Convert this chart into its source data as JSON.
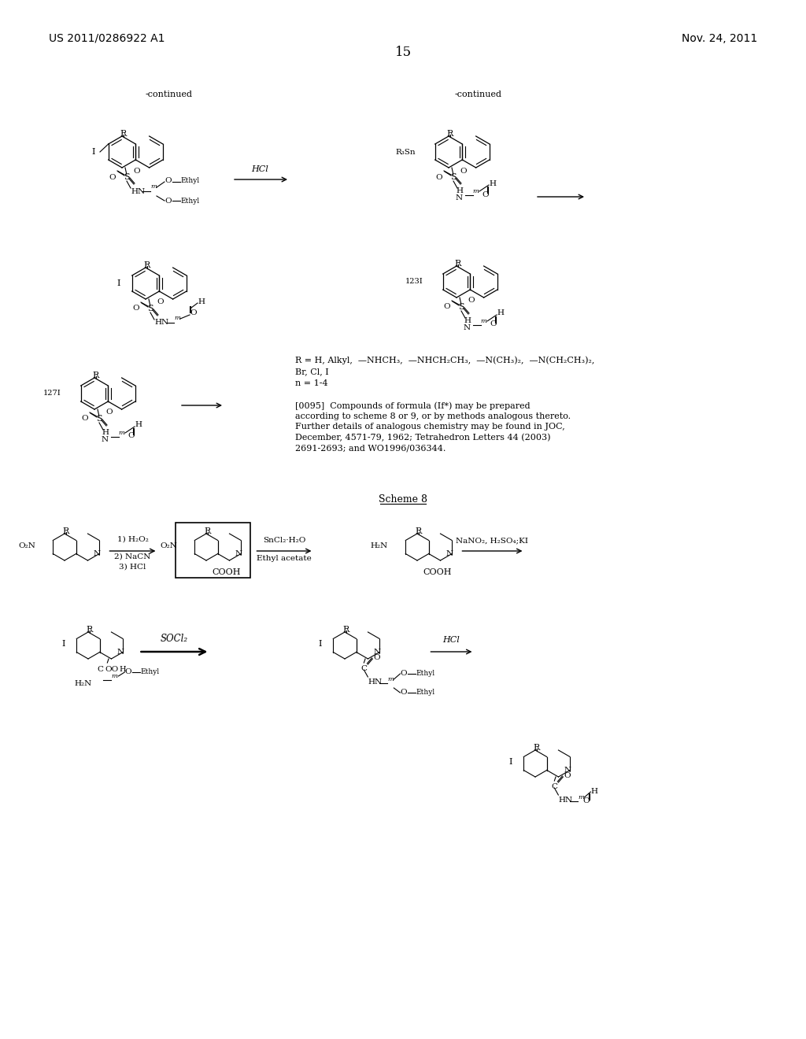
{
  "background_color": "#ffffff",
  "page_number": "15",
  "patent_left": "US 2011/0286922 A1",
  "patent_right": "Nov. 24, 2011",
  "figsize": [
    10.24,
    13.2
  ],
  "dpi": 100
}
